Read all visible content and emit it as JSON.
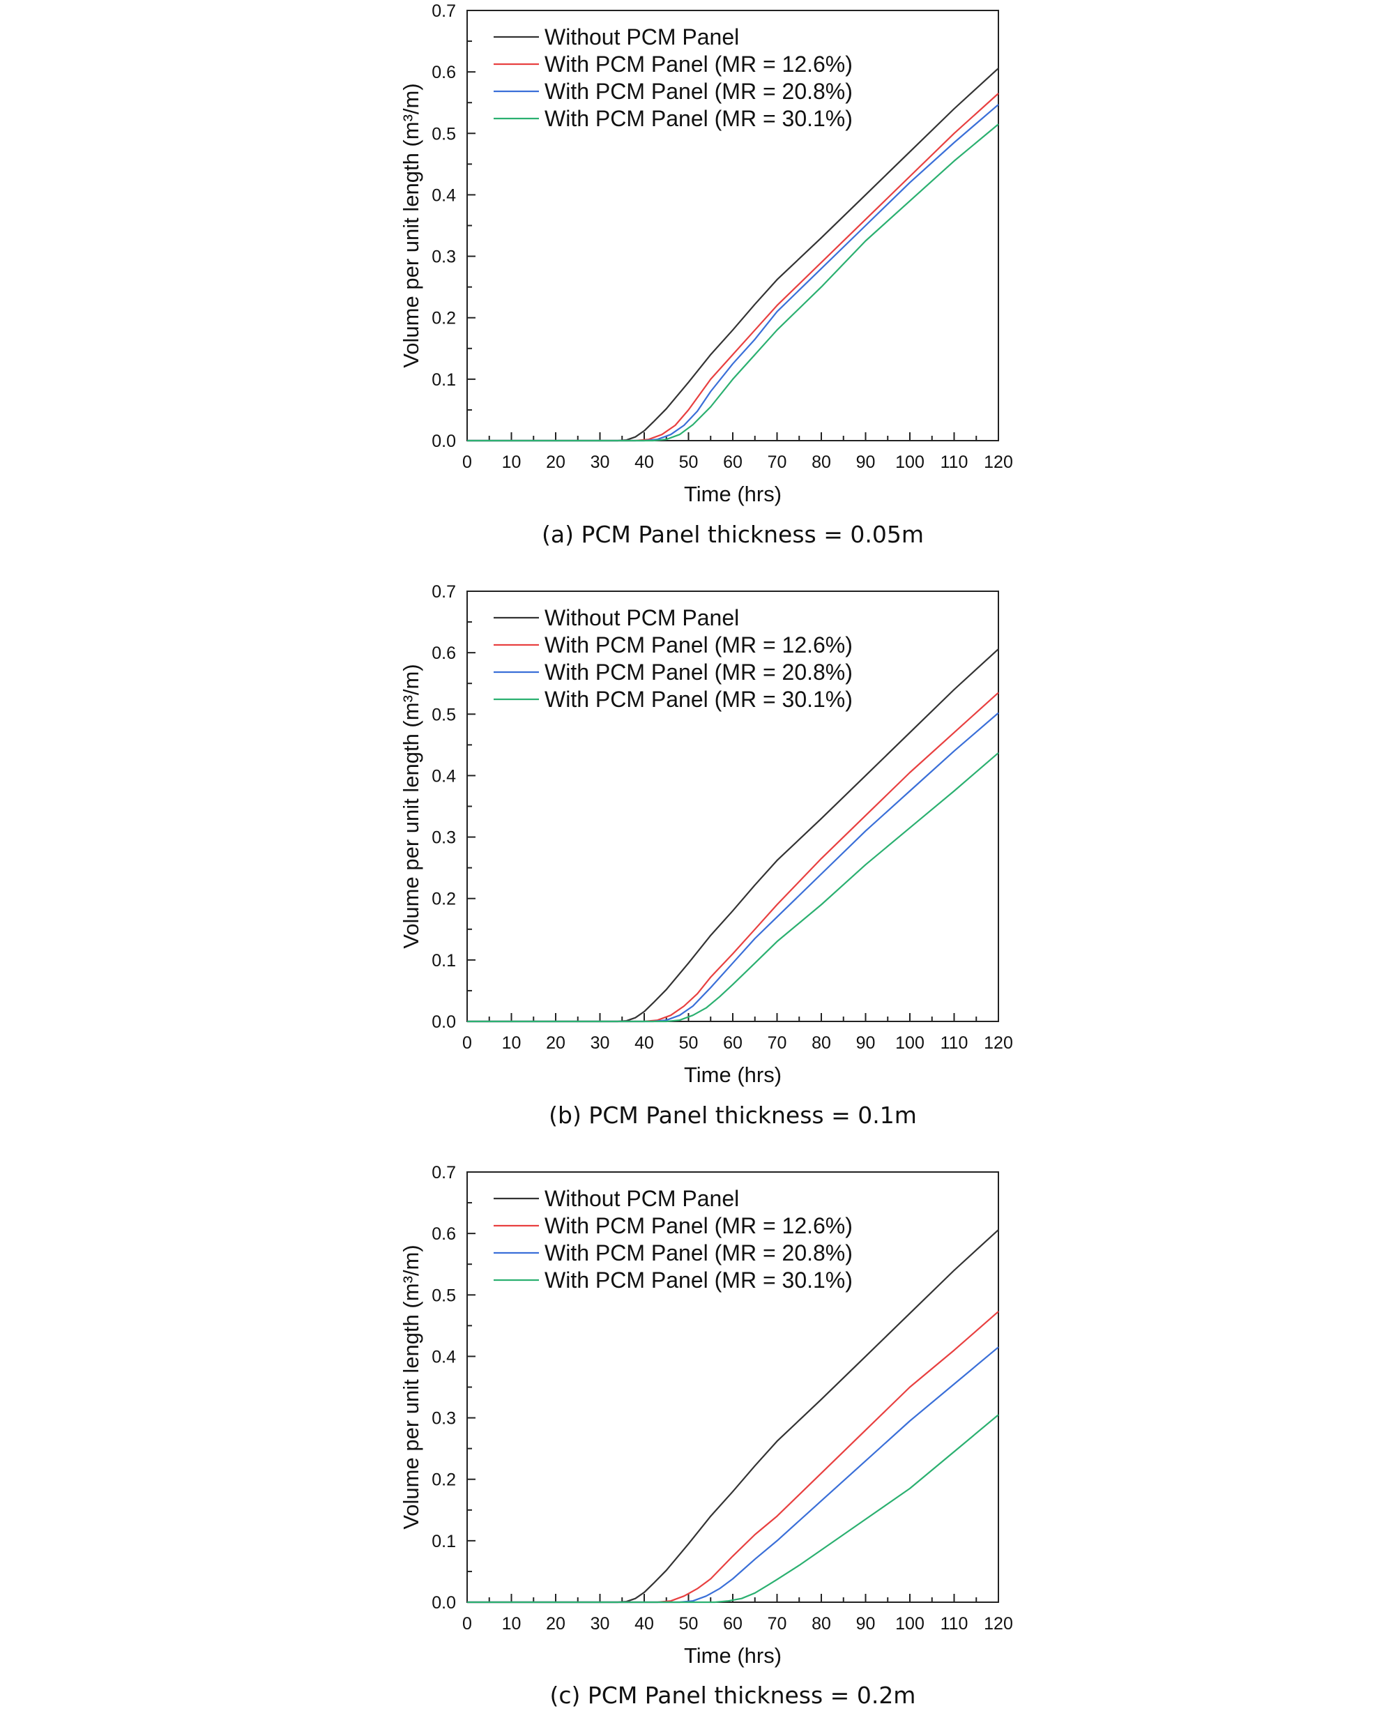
{
  "figure": {
    "panels": [
      {
        "caption": "(a) PCM Panel thickness = 0.05m"
      },
      {
        "caption": "(b) PCM Panel thickness = 0.1m"
      },
      {
        "caption": "(c) PCM Panel thickness = 0.2m"
      }
    ]
  },
  "chart_data": [
    {
      "type": "line",
      "caption": "(a) PCM Panel thickness = 0.05m",
      "xlabel": "Time (hrs)",
      "ylabel": "Volume per unit length (m³/m)",
      "xlim": [
        0,
        120
      ],
      "ylim": [
        0,
        0.7
      ],
      "xticks": [
        "0",
        "10",
        "20",
        "30",
        "40",
        "50",
        "60",
        "70",
        "80",
        "90",
        "100",
        "110",
        "120"
      ],
      "yticks": [
        "0.0",
        "0.1",
        "0.2",
        "0.3",
        "0.4",
        "0.5",
        "0.6",
        "0.7"
      ],
      "grid": false,
      "legend_position": "top-left",
      "series": [
        {
          "name": "Without PCM Panel",
          "color": "#333333",
          "points": [
            [
              0,
              0
            ],
            [
              34,
              0
            ],
            [
              36,
              0.001
            ],
            [
              38,
              0.006
            ],
            [
              40,
              0.016
            ],
            [
              42,
              0.03
            ],
            [
              45,
              0.052
            ],
            [
              50,
              0.095
            ],
            [
              55,
              0.14
            ],
            [
              60,
              0.18
            ],
            [
              65,
              0.222
            ],
            [
              70,
              0.262
            ],
            [
              80,
              0.33
            ],
            [
              90,
              0.4
            ],
            [
              100,
              0.47
            ],
            [
              110,
              0.54
            ],
            [
              120,
              0.606
            ]
          ]
        },
        {
          "name": "With PCM Panel (MR = 12.6%)",
          "color": "#e84040",
          "points": [
            [
              0,
              0
            ],
            [
              38,
              0
            ],
            [
              41,
              0.002
            ],
            [
              44,
              0.01
            ],
            [
              47,
              0.025
            ],
            [
              50,
              0.05
            ],
            [
              55,
              0.1
            ],
            [
              60,
              0.14
            ],
            [
              65,
              0.18
            ],
            [
              70,
              0.22
            ],
            [
              80,
              0.29
            ],
            [
              90,
              0.36
            ],
            [
              100,
              0.43
            ],
            [
              110,
              0.5
            ],
            [
              120,
              0.565
            ]
          ]
        },
        {
          "name": "With PCM Panel (MR = 20.8%)",
          "color": "#3a6fd8",
          "points": [
            [
              0,
              0
            ],
            [
              40,
              0
            ],
            [
              43,
              0.002
            ],
            [
              46,
              0.01
            ],
            [
              49,
              0.025
            ],
            [
              52,
              0.048
            ],
            [
              55,
              0.08
            ],
            [
              60,
              0.125
            ],
            [
              65,
              0.165
            ],
            [
              70,
              0.21
            ],
            [
              80,
              0.28
            ],
            [
              90,
              0.35
            ],
            [
              100,
              0.42
            ],
            [
              110,
              0.485
            ],
            [
              120,
              0.547
            ]
          ]
        },
        {
          "name": "With PCM Panel (MR = 30.1%)",
          "color": "#2bb070",
          "points": [
            [
              0,
              0
            ],
            [
              42,
              0
            ],
            [
              45,
              0.002
            ],
            [
              48,
              0.01
            ],
            [
              51,
              0.026
            ],
            [
              55,
              0.055
            ],
            [
              60,
              0.1
            ],
            [
              65,
              0.14
            ],
            [
              70,
              0.18
            ],
            [
              80,
              0.25
            ],
            [
              90,
              0.325
            ],
            [
              100,
              0.39
            ],
            [
              110,
              0.455
            ],
            [
              120,
              0.515
            ]
          ]
        }
      ]
    },
    {
      "type": "line",
      "caption": "(b) PCM Panel thickness = 0.1m",
      "xlabel": "Time (hrs)",
      "ylabel": "Volume per unit length (m³/m)",
      "xlim": [
        0,
        120
      ],
      "ylim": [
        0,
        0.7
      ],
      "xticks": [
        "0",
        "10",
        "20",
        "30",
        "40",
        "50",
        "60",
        "70",
        "80",
        "90",
        "100",
        "110",
        "120"
      ],
      "yticks": [
        "0.0",
        "0.1",
        "0.2",
        "0.3",
        "0.4",
        "0.5",
        "0.6",
        "0.7"
      ],
      "grid": false,
      "legend_position": "top-left",
      "series": [
        {
          "name": "Without PCM Panel",
          "color": "#333333",
          "points": [
            [
              0,
              0
            ],
            [
              34,
              0
            ],
            [
              36,
              0.001
            ],
            [
              38,
              0.006
            ],
            [
              40,
              0.016
            ],
            [
              42,
              0.03
            ],
            [
              45,
              0.052
            ],
            [
              50,
              0.095
            ],
            [
              55,
              0.14
            ],
            [
              60,
              0.18
            ],
            [
              65,
              0.222
            ],
            [
              70,
              0.262
            ],
            [
              80,
              0.33
            ],
            [
              90,
              0.4
            ],
            [
              100,
              0.47
            ],
            [
              110,
              0.54
            ],
            [
              120,
              0.606
            ]
          ]
        },
        {
          "name": "With PCM Panel (MR = 12.6%)",
          "color": "#e84040",
          "points": [
            [
              0,
              0
            ],
            [
              40,
              0
            ],
            [
              43,
              0.002
            ],
            [
              46,
              0.01
            ],
            [
              49,
              0.025
            ],
            [
              52,
              0.045
            ],
            [
              55,
              0.072
            ],
            [
              60,
              0.11
            ],
            [
              65,
              0.15
            ],
            [
              70,
              0.19
            ],
            [
              80,
              0.265
            ],
            [
              90,
              0.335
            ],
            [
              100,
              0.405
            ],
            [
              110,
              0.47
            ],
            [
              120,
              0.535
            ]
          ]
        },
        {
          "name": "With PCM Panel (MR = 20.8%)",
          "color": "#3a6fd8",
          "points": [
            [
              0,
              0
            ],
            [
              42,
              0
            ],
            [
              45,
              0.002
            ],
            [
              48,
              0.01
            ],
            [
              51,
              0.025
            ],
            [
              55,
              0.055
            ],
            [
              60,
              0.095
            ],
            [
              65,
              0.135
            ],
            [
              70,
              0.17
            ],
            [
              80,
              0.24
            ],
            [
              90,
              0.31
            ],
            [
              100,
              0.375
            ],
            [
              110,
              0.44
            ],
            [
              120,
              0.502
            ]
          ]
        },
        {
          "name": "With PCM Panel (MR = 30.1%)",
          "color": "#2bb070",
          "points": [
            [
              0,
              0
            ],
            [
              45,
              0
            ],
            [
              48,
              0.002
            ],
            [
              51,
              0.01
            ],
            [
              54,
              0.022
            ],
            [
              57,
              0.04
            ],
            [
              60,
              0.06
            ],
            [
              65,
              0.095
            ],
            [
              70,
              0.13
            ],
            [
              80,
              0.19
            ],
            [
              90,
              0.255
            ],
            [
              100,
              0.315
            ],
            [
              110,
              0.375
            ],
            [
              120,
              0.437
            ]
          ]
        }
      ]
    },
    {
      "type": "line",
      "caption": "(c) PCM Panel thickness = 0.2m",
      "xlabel": "Time (hrs)",
      "ylabel": "Volume per unit length (m³/m)",
      "xlim": [
        0,
        120
      ],
      "ylim": [
        0,
        0.7
      ],
      "xticks": [
        "0",
        "10",
        "20",
        "30",
        "40",
        "50",
        "60",
        "70",
        "80",
        "90",
        "100",
        "110",
        "120"
      ],
      "yticks": [
        "0.0",
        "0.1",
        "0.2",
        "0.3",
        "0.4",
        "0.5",
        "0.6",
        "0.7"
      ],
      "grid": false,
      "legend_position": "top-left",
      "series": [
        {
          "name": "Without PCM Panel",
          "color": "#333333",
          "points": [
            [
              0,
              0
            ],
            [
              34,
              0
            ],
            [
              36,
              0.001
            ],
            [
              38,
              0.006
            ],
            [
              40,
              0.016
            ],
            [
              42,
              0.03
            ],
            [
              45,
              0.052
            ],
            [
              50,
              0.095
            ],
            [
              55,
              0.14
            ],
            [
              60,
              0.18
            ],
            [
              65,
              0.222
            ],
            [
              70,
              0.262
            ],
            [
              80,
              0.33
            ],
            [
              90,
              0.4
            ],
            [
              100,
              0.47
            ],
            [
              110,
              0.54
            ],
            [
              120,
              0.606
            ]
          ]
        },
        {
          "name": "With PCM Panel (MR = 12.6%)",
          "color": "#e84040",
          "points": [
            [
              0,
              0
            ],
            [
              43,
              0
            ],
            [
              46,
              0.002
            ],
            [
              49,
              0.01
            ],
            [
              52,
              0.022
            ],
            [
              55,
              0.038
            ],
            [
              60,
              0.075
            ],
            [
              65,
              0.11
            ],
            [
              70,
              0.14
            ],
            [
              80,
              0.21
            ],
            [
              90,
              0.28
            ],
            [
              100,
              0.35
            ],
            [
              110,
              0.41
            ],
            [
              120,
              0.473
            ]
          ]
        },
        {
          "name": "With PCM Panel (MR = 20.8%)",
          "color": "#3a6fd8",
          "points": [
            [
              0,
              0
            ],
            [
              48,
              0
            ],
            [
              51,
              0.002
            ],
            [
              54,
              0.01
            ],
            [
              57,
              0.022
            ],
            [
              60,
              0.038
            ],
            [
              65,
              0.07
            ],
            [
              70,
              0.1
            ],
            [
              80,
              0.165
            ],
            [
              90,
              0.23
            ],
            [
              100,
              0.295
            ],
            [
              110,
              0.355
            ],
            [
              120,
              0.415
            ]
          ]
        },
        {
          "name": "With PCM Panel (MR = 30.1%)",
          "color": "#2bb070",
          "points": [
            [
              0,
              0
            ],
            [
              56,
              0
            ],
            [
              59,
              0.002
            ],
            [
              62,
              0.006
            ],
            [
              65,
              0.015
            ],
            [
              68,
              0.028
            ],
            [
              70,
              0.037
            ],
            [
              75,
              0.06
            ],
            [
              80,
              0.085
            ],
            [
              90,
              0.135
            ],
            [
              100,
              0.185
            ],
            [
              110,
              0.245
            ],
            [
              120,
              0.305
            ]
          ]
        }
      ]
    }
  ]
}
